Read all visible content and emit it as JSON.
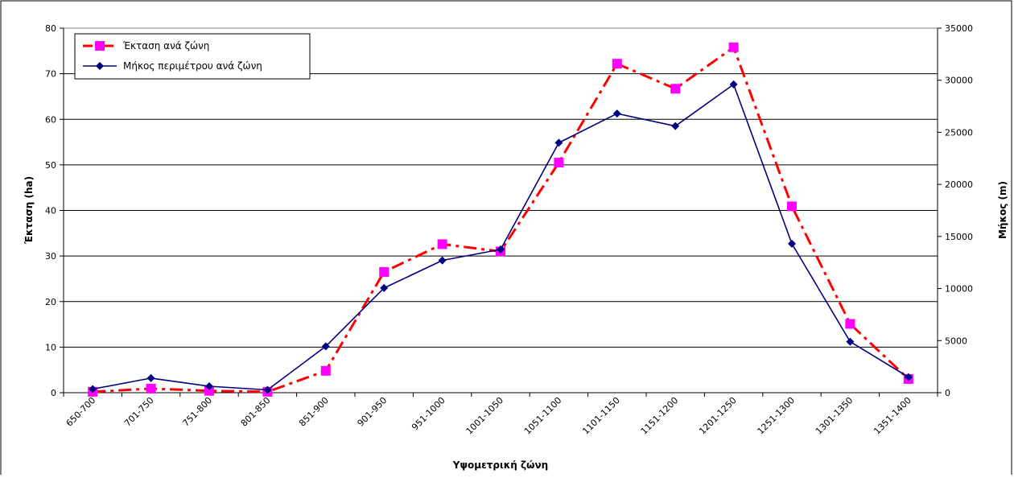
{
  "chart_data": {
    "type": "line",
    "title": "",
    "xlabel": "Υψομετρική ζώνη",
    "ylabel": "Έκταση (ha)",
    "y2label": "Μήκος (m)",
    "ylim": [
      0,
      80
    ],
    "y2lim": [
      0,
      35000
    ],
    "yticks": [
      "0",
      "10",
      "20",
      "30",
      "40",
      "50",
      "60",
      "70",
      "80"
    ],
    "y2ticks": [
      "0",
      "5000",
      "10000",
      "15000",
      "20000",
      "25000",
      "30000",
      "35000"
    ],
    "grid": "horizontal",
    "legend_position": "top-left",
    "categories": [
      "650-700",
      "701-750",
      "751-800",
      "801-850",
      "851-900",
      "901-950",
      "951-1000",
      "1001-1050",
      "1051-1100",
      "1101-1150",
      "1151-1200",
      "1201-1250",
      "1251-1300",
      "1301-1350",
      "1351-1400"
    ],
    "series": [
      {
        "name": "Έκταση ανά ζώνη",
        "axis": "left",
        "color": "#ff0000",
        "marker_color": "#ff00ff",
        "marker": "square",
        "line_style": "dash-dot",
        "values": [
          0.2,
          0.9,
          0.4,
          0.2,
          4.8,
          26.5,
          32.6,
          31.0,
          50.5,
          72.2,
          66.7,
          75.8,
          40.9,
          15.1,
          3.0
        ]
      },
      {
        "name": "Μήκος περιμέτρου ανά ζώνη",
        "axis": "right",
        "color": "#000080",
        "marker_color": "#000080",
        "marker": "diamond",
        "line_style": "solid",
        "values": [
          350,
          1400,
          620,
          270,
          4450,
          10050,
          12700,
          13750,
          24000,
          26800,
          25600,
          29600,
          14300,
          4900,
          1500
        ]
      }
    ]
  }
}
